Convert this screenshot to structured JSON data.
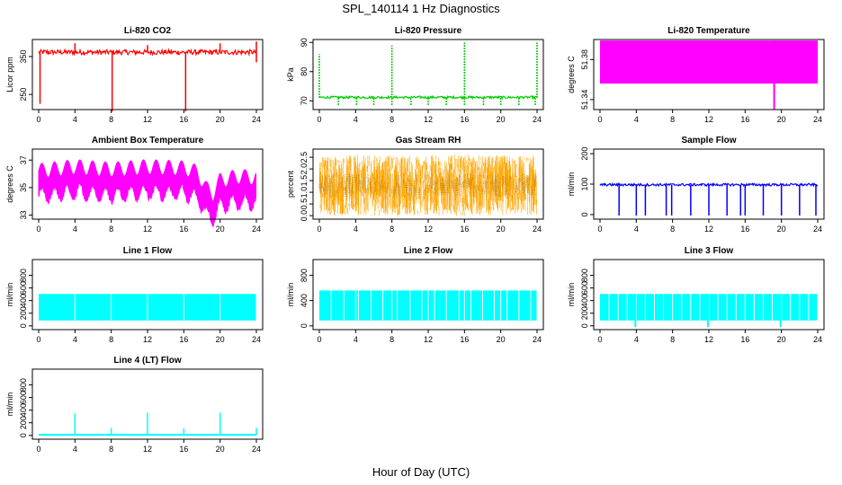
{
  "page_title": "SPL_140114  1 Hz Diagnostics",
  "x_axis_label": "Hour of Day (UTC)",
  "chart_data": [
    {
      "type": "line",
      "title": "Li-820 CO2",
      "ylabel": "Licor ppm",
      "color": "#ff0000",
      "x_ticks": [
        "0",
        "4",
        "8",
        "12",
        "16",
        "20",
        "24"
      ],
      "xlim": [
        0,
        24
      ],
      "y_ticks": [
        "250",
        "350"
      ],
      "ylim": [
        210,
        395
      ],
      "baseline": 362,
      "band": [
        355,
        368
      ],
      "dips": [
        [
          0.15,
          225
        ],
        [
          8.1,
          205
        ],
        [
          16.2,
          205
        ],
        [
          24,
          335
        ]
      ],
      "spikes": [
        [
          4,
          385
        ],
        [
          12,
          380
        ],
        [
          20,
          385
        ],
        [
          24,
          390
        ]
      ]
    },
    {
      "type": "line",
      "title": "Li-820 Pressure",
      "ylabel": "kPa",
      "color": "#00cc00",
      "x_ticks": [
        "0",
        "4",
        "8",
        "12",
        "16",
        "20",
        "24"
      ],
      "xlim": [
        0,
        24
      ],
      "y_ticks": [
        "70",
        "80",
        "90"
      ],
      "ylim": [
        67,
        91
      ],
      "baseline": 71,
      "band": [
        70.8,
        71.6
      ],
      "dips": [
        [
          2.1,
          68.5
        ],
        [
          4.1,
          68.5
        ],
        [
          6.0,
          68.5
        ],
        [
          8.0,
          68.5
        ],
        [
          10.1,
          68.5
        ],
        [
          12.0,
          68.5
        ],
        [
          14.0,
          68.5
        ],
        [
          16.0,
          68.5
        ],
        [
          18.1,
          68.5
        ],
        [
          20.0,
          68.5
        ],
        [
          22.0,
          68.5
        ],
        [
          23.8,
          68.5
        ]
      ],
      "spikes": [
        [
          0,
          86
        ],
        [
          8,
          89
        ],
        [
          16,
          90
        ],
        [
          24,
          90
        ]
      ]
    },
    {
      "type": "area",
      "title": "Li-820 Temperature",
      "ylabel": "degrees C",
      "color": "#ff00ff",
      "x_ticks": [
        "0",
        "4",
        "8",
        "12",
        "16",
        "20",
        "24"
      ],
      "xlim": [
        0,
        24
      ],
      "y_ticks": [
        "51.34",
        "51.38"
      ],
      "ylim": [
        51.33,
        51.4
      ],
      "band": [
        51.356,
        51.399
      ],
      "dips": [
        [
          19.2,
          51.33
        ]
      ]
    },
    {
      "type": "line",
      "title": "Ambient Box Temperature",
      "ylabel": "degrees C",
      "color": "#ff00ff",
      "x_ticks": [
        "0",
        "4",
        "8",
        "12",
        "16",
        "20",
        "24"
      ],
      "xlim": [
        0,
        24
      ],
      "y_ticks": [
        "33",
        "35",
        "37"
      ],
      "ylim": [
        32.7,
        37.8
      ],
      "oscillation": {
        "period_hours": 1.4,
        "amplitude": 0.9,
        "noise": 0.4
      },
      "baseline_points": [
        [
          0,
          35.3
        ],
        [
          4,
          35.6
        ],
        [
          8,
          35.4
        ],
        [
          12,
          35.6
        ],
        [
          16,
          35.5
        ],
        [
          17.5,
          35.2
        ],
        [
          18.5,
          34.0
        ],
        [
          19.2,
          33.6
        ],
        [
          20,
          34.6
        ],
        [
          22,
          34.9
        ],
        [
          24,
          34.8
        ]
      ]
    },
    {
      "type": "scatter",
      "title": "Gas Stream RH",
      "ylabel": "percent",
      "color": "#ffa500",
      "x_ticks": [
        "0",
        "4",
        "8",
        "12",
        "16",
        "20",
        "24"
      ],
      "xlim": [
        0,
        24
      ],
      "y_ticks": [
        "0.0",
        "0.5",
        "1.0",
        "1.5",
        "2.0",
        "2.5"
      ],
      "ylim": [
        -0.15,
        2.85
      ],
      "band": [
        0.0,
        2.6
      ],
      "mean": 1.3
    },
    {
      "type": "line",
      "title": "Sample Flow",
      "ylabel": "ml/min",
      "color": "#0000ff",
      "x_ticks": [
        "0",
        "4",
        "8",
        "12",
        "16",
        "20",
        "24"
      ],
      "xlim": [
        0,
        24
      ],
      "y_ticks": [
        "0",
        "100",
        "200"
      ],
      "ylim": [
        -15,
        215
      ],
      "baseline": 97,
      "band": [
        94,
        102
      ],
      "dips": [
        [
          2.1,
          -3
        ],
        [
          4,
          -3
        ],
        [
          5,
          -3
        ],
        [
          7.3,
          -3
        ],
        [
          7.9,
          -3
        ],
        [
          10,
          -3
        ],
        [
          12,
          -3
        ],
        [
          14,
          -3
        ],
        [
          15.5,
          -3
        ],
        [
          16,
          -3
        ],
        [
          18,
          -3
        ],
        [
          20,
          -3
        ],
        [
          22,
          -3
        ],
        [
          23.8,
          -3
        ]
      ]
    },
    {
      "type": "area",
      "title": "Line 1 Flow",
      "ylabel": "ml/min",
      "color": "#00ffff",
      "x_ticks": [
        "0",
        "4",
        "8",
        "12",
        "16",
        "20",
        "24"
      ],
      "xlim": [
        0,
        24
      ],
      "y_ticks": [
        "0",
        "200",
        "400",
        "600",
        "800"
      ],
      "ylim": [
        -60,
        1050
      ],
      "band": [
        85,
        505
      ],
      "notches": [
        4,
        8,
        12,
        16,
        20,
        24
      ]
    },
    {
      "type": "area",
      "title": "Line 2 Flow",
      "ylabel": "ml/min",
      "color": "#00ffff",
      "x_ticks": [
        "0",
        "4",
        "8",
        "12",
        "16",
        "20",
        "24"
      ],
      "xlim": [
        0,
        24
      ],
      "y_ticks": [
        "0",
        "400",
        "800"
      ],
      "ylim": [
        -60,
        1050
      ],
      "band": [
        85,
        560
      ],
      "notches": [
        1.3,
        2.7,
        4,
        4.3,
        5.7,
        7,
        8,
        8.6,
        10,
        11.3,
        12,
        12.7,
        14,
        15.4,
        16,
        16.7,
        18,
        19.3,
        20,
        20.7,
        22,
        23.3,
        24
      ]
    },
    {
      "type": "area",
      "title": "Line 3 Flow",
      "ylabel": "ml/min",
      "color": "#00ffff",
      "x_ticks": [
        "0",
        "4",
        "8",
        "12",
        "16",
        "20",
        "24"
      ],
      "xlim": [
        0,
        24
      ],
      "y_ticks": [
        "0",
        "200",
        "400",
        "600",
        "800"
      ],
      "ylim": [
        -60,
        1050
      ],
      "band": [
        85,
        505
      ],
      "notches": [
        1,
        2,
        3,
        4,
        5,
        6,
        7,
        8,
        9,
        10,
        11,
        12,
        13,
        14,
        15,
        16,
        17,
        18,
        19,
        20,
        21,
        22,
        23,
        24
      ],
      "dips": [
        [
          3.9,
          -20
        ],
        [
          11.9,
          -20
        ],
        [
          19.9,
          -20
        ]
      ]
    },
    {
      "type": "line",
      "title": "Line 4 (LT) Flow",
      "ylabel": "ml/min",
      "color": "#00ffff",
      "x_ticks": [
        "0",
        "4",
        "8",
        "12",
        "16",
        "20",
        "24"
      ],
      "xlim": [
        0,
        24
      ],
      "y_ticks": [
        "0",
        "200",
        "400",
        "600",
        "800"
      ],
      "ylim": [
        -60,
        1050
      ],
      "baseline": 10,
      "spikes": [
        [
          4,
          350
        ],
        [
          8,
          120
        ],
        [
          12,
          360
        ],
        [
          16,
          110
        ],
        [
          20,
          360
        ],
        [
          24,
          120
        ]
      ]
    }
  ]
}
